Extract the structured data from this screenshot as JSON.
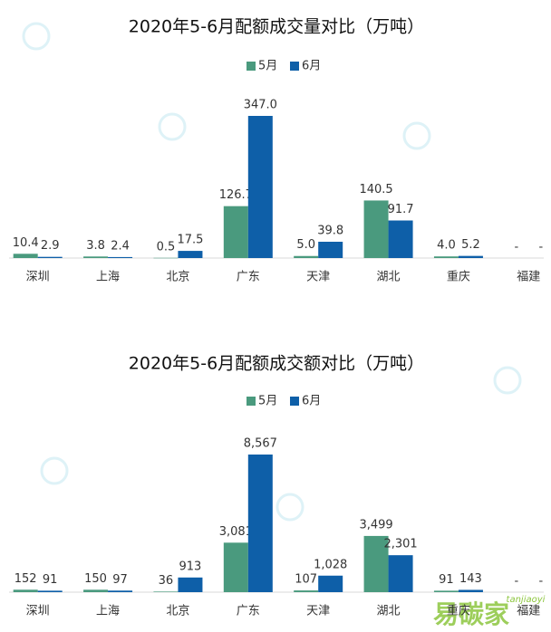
{
  "chart_data": [
    {
      "type": "bar",
      "title": "2020年5-6月配额成交量对比（万吨）",
      "categories": [
        "深圳",
        "上海",
        "北京",
        "广东",
        "天津",
        "湖北",
        "重庆",
        "福建"
      ],
      "series": [
        {
          "name": "5月",
          "color": "#4a9a7e",
          "values": [
            10.4,
            3.8,
            0.5,
            126.7,
            5.0,
            140.5,
            4.0,
            null
          ],
          "value_labels": [
            "10.4",
            "3.8",
            "0.5",
            "126.7",
            "5.0",
            "140.5",
            "4.0",
            "-"
          ]
        },
        {
          "name": "6月",
          "color": "#0e5fa8",
          "values": [
            2.9,
            2.4,
            17.5,
            347.0,
            39.8,
            91.7,
            5.2,
            null
          ],
          "value_labels": [
            "2.9",
            "2.4",
            "17.5",
            "347.0",
            "39.8",
            "91.7",
            "5.2",
            "-"
          ]
        }
      ]
    },
    {
      "type": "bar",
      "title": "2020年5-6月配额成交额对比（万吨）",
      "categories": [
        "深圳",
        "上海",
        "北京",
        "广东",
        "天津",
        "湖北",
        "重庆",
        "福建"
      ],
      "series": [
        {
          "name": "5月",
          "color": "#4a9a7e",
          "values": [
            152,
            150,
            36,
            3081,
            107,
            3499,
            91,
            null
          ],
          "value_labels": [
            "152",
            "150",
            "36",
            "3,081",
            "107",
            "3,499",
            "91",
            "-"
          ]
        },
        {
          "name": "6月",
          "color": "#0e5fa8",
          "values": [
            91,
            97,
            913,
            8567,
            1028,
            2301,
            143,
            null
          ],
          "value_labels": [
            "91",
            "97",
            "913",
            "8,567",
            "1,028",
            "2,301",
            "143",
            "-"
          ]
        }
      ]
    }
  ],
  "watermark": {
    "brand": "易碳家",
    "site": "tanjiaoyi"
  }
}
